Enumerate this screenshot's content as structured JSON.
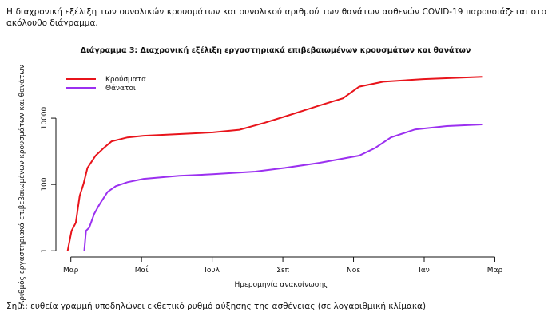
{
  "intro": "Η διαχρονική εξέλιξη των συνολικών κρουσμάτων και συνολικού αριθμού των θανάτων ασθενών COVID-19 παρουσιάζεται στο ακόλουθο διάγραμμα.",
  "chart_data": {
    "type": "line",
    "title": "Διάγραμμα 3: Διαχρονική εξέλιξη εργαστηριακά επιβεβαιωμένων κρουσμάτων και θανάτων",
    "x_label": "Ημερομηνία ανακοίνωσης",
    "y_label": "Αριθμός εργαστηριακά επιβεβαιωμένων κρουσμάτων και θανάτων",
    "log_y": true,
    "xlim": [
      -0.4,
      12.6
    ],
    "xticks": [
      {
        "value": 0,
        "label": "Μαρ"
      },
      {
        "value": 2,
        "label": "Μαΐ"
      },
      {
        "value": 4,
        "label": "Ιουλ"
      },
      {
        "value": 6,
        "label": "Σεπ"
      },
      {
        "value": 8,
        "label": "Νοε"
      },
      {
        "value": 10,
        "label": "Ιαν"
      },
      {
        "value": 12,
        "label": "Μαρ"
      }
    ],
    "ylim": [
      0.65,
      330000
    ],
    "yticks": [
      1,
      100,
      10000
    ],
    "legend": "top-left",
    "series": [
      {
        "name": "Κρούσματα",
        "color": "#e8141b",
        "x": [
          -0.09,
          0.02,
          0.14,
          0.25,
          0.36,
          0.47,
          0.7,
          0.93,
          1.15,
          1.6,
          2.06,
          3.07,
          4.02,
          4.77,
          5.45,
          6.06,
          7.03,
          7.7,
          8.16,
          8.84,
          9.97,
          11.64
        ],
        "values": [
          1,
          4,
          7,
          46,
          105,
          316,
          741,
          1259,
          1995,
          2630,
          2951,
          3311,
          3715,
          4467,
          7079,
          11220,
          23988,
          39811,
          89125,
          125893,
          151356,
          177828
        ]
      },
      {
        "name": "Θάνατοι",
        "color": "#9b30f0",
        "x": [
          0.38,
          0.43,
          0.52,
          0.66,
          0.81,
          1.04,
          1.27,
          1.6,
          2.06,
          3.07,
          4.02,
          5.22,
          6.06,
          7.03,
          8.16,
          8.61,
          9.06,
          9.74,
          10.64,
          11.64
        ],
        "values": [
          1,
          4,
          5,
          13,
          25,
          60,
          89,
          117,
          148,
          182,
          204,
          245,
          316,
          447,
          741,
          1259,
          2630,
          4571,
          5754,
          6457
        ]
      }
    ]
  },
  "note": "Σημ.: ευθεία γραμμή υποδηλώνει εκθετικό ρυθμό αύξησης της ασθένειας (σε λογαριθμική κλίμακα)"
}
